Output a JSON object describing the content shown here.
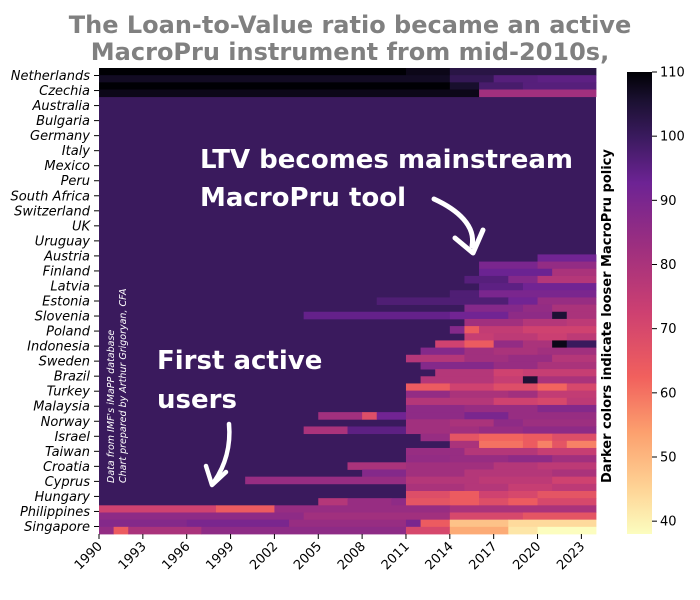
{
  "title_lines": [
    "The Loan-to-Value ratio became an active",
    "MacroPru instrument from mid-2010s,"
  ],
  "colorbar": {
    "label": "Darker colors indicate looser MacroPru policy",
    "ticks": [
      40,
      50,
      60,
      70,
      80,
      90,
      100,
      110
    ],
    "range": [
      38,
      110
    ]
  },
  "annotations": {
    "mainstream": [
      "LTV becomes mainstream",
      "MacroPru tool"
    ],
    "first": [
      "First active",
      "users"
    ],
    "credit": [
      "Data from IMF's iMaPP database",
      "Chart prepared by Arthur Grigoryan, CFA"
    ]
  },
  "chart_data": {
    "type": "heatmap",
    "x_ticks": [
      "1990",
      "1993",
      "1996",
      "1999",
      "2002",
      "2005",
      "2008",
      "2011",
      "2014",
      "2017",
      "2020",
      "2023"
    ],
    "x_range": [
      1990,
      2024
    ],
    "y_labels": [
      "Netherlands",
      "Czechia",
      "Australia",
      "Bulgaria",
      "Germany",
      "Italy",
      "Mexico",
      "Peru",
      "South Africa",
      "Switzerland",
      "UK",
      "Uruguay",
      "Austria",
      "Finland",
      "Latvia",
      "Estonia",
      "Slovenia",
      "Poland",
      "Indonesia",
      "Sweden",
      "Brazil",
      "Turkey",
      "Malaysia",
      "Norway",
      "Israel",
      "Taiwan",
      "Croatia",
      "Cyprus",
      "Hungary",
      "Philippines",
      "Singapore"
    ],
    "rows_per_label": 2,
    "baseline_value": 100,
    "rows": [
      [
        [
          1990,
          2011,
          110
        ],
        [
          2011,
          2014,
          108
        ],
        [
          2014,
          2024,
          103
        ]
      ],
      [
        [
          1990,
          2014,
          107
        ],
        [
          2014,
          2017,
          101
        ],
        [
          2017,
          2020,
          96
        ],
        [
          2020,
          2024,
          95
        ]
      ],
      [
        [
          1990,
          2014,
          110
        ],
        [
          2014,
          2016,
          106
        ],
        [
          2016,
          2019,
          98
        ],
        [
          2019,
          2024,
          96
        ]
      ],
      [
        [
          1990,
          2016,
          108
        ],
        [
          2016,
          2024,
          82
        ]
      ],
      [],
      [],
      [],
      [],
      [],
      [],
      [],
      [],
      [],
      [],
      [],
      [],
      [],
      [],
      [],
      [],
      [],
      [],
      [],
      [],
      [],
      [],
      [
        [
          2020,
          2024,
          92
        ]
      ],
      [
        [
          2016,
          2020,
          90
        ],
        [
          2020,
          2024,
          85
        ]
      ],
      [
        [
          2016,
          2021,
          93
        ],
        [
          2021,
          2024,
          80
        ]
      ],
      [
        [
          2015,
          2018,
          96
        ],
        [
          2018,
          2020,
          88
        ],
        [
          2020,
          2024,
          78
        ]
      ],
      [
        [
          2016,
          2019,
          95
        ],
        [
          2019,
          2024,
          92
        ]
      ],
      [
        [
          2014,
          2016,
          97
        ],
        [
          2016,
          2024,
          90
        ]
      ],
      [
        [
          2009,
          2018,
          97
        ],
        [
          2018,
          2020,
          92
        ],
        [
          2020,
          2024,
          84
        ]
      ],
      [
        [
          2015,
          2019,
          88
        ],
        [
          2019,
          2021,
          85
        ],
        [
          2021,
          2024,
          80
        ]
      ],
      [
        [
          2004,
          2014,
          94
        ],
        [
          2014,
          2018,
          92
        ],
        [
          2018,
          2021,
          86
        ],
        [
          2021,
          2022,
          105
        ],
        [
          2022,
          2024,
          80
        ]
      ],
      [
        [
          2015,
          2019,
          82
        ],
        [
          2019,
          2022,
          78
        ],
        [
          2022,
          2024,
          76
        ]
      ],
      [
        [
          2014,
          2015,
          88
        ],
        [
          2015,
          2016,
          64
        ],
        [
          2016,
          2019,
          75
        ],
        [
          2019,
          2024,
          72
        ]
      ],
      [
        [
          2015,
          2017,
          74
        ],
        [
          2017,
          2020,
          76
        ],
        [
          2020,
          2022,
          73
        ],
        [
          2022,
          2024,
          76
        ]
      ],
      [
        [
          2013,
          2015,
          72
        ],
        [
          2015,
          2017,
          64
        ],
        [
          2017,
          2019,
          85
        ],
        [
          2019,
          2021,
          80
        ],
        [
          2021,
          2022,
          108
        ],
        [
          2022,
          2024,
          100
        ]
      ],
      [
        [
          2012,
          2015,
          88
        ],
        [
          2015,
          2017,
          82
        ],
        [
          2017,
          2020,
          80
        ],
        [
          2020,
          2024,
          82
        ]
      ],
      [
        [
          2011,
          2015,
          78
        ],
        [
          2015,
          2018,
          82
        ],
        [
          2018,
          2021,
          84
        ],
        [
          2021,
          2024,
          78
        ]
      ],
      [
        [
          2012,
          2017,
          88
        ],
        [
          2017,
          2020,
          84
        ],
        [
          2020,
          2024,
          80
        ]
      ],
      [
        [
          2013,
          2017,
          78
        ],
        [
          2017,
          2019,
          72
        ],
        [
          2019,
          2024,
          74
        ]
      ],
      [
        [
          2012,
          2017,
          78
        ],
        [
          2017,
          2019,
          74
        ],
        [
          2019,
          2020,
          105
        ],
        [
          2020,
          2024,
          80
        ]
      ],
      [
        [
          2011,
          2014,
          64
        ],
        [
          2014,
          2017,
          72
        ],
        [
          2017,
          2020,
          68
        ],
        [
          2020,
          2022,
          62
        ],
        [
          2022,
          2024,
          70
        ]
      ],
      [
        [
          2011,
          2014,
          85
        ],
        [
          2014,
          2018,
          80
        ],
        [
          2018,
          2020,
          82
        ],
        [
          2020,
          2024,
          75
        ]
      ],
      [
        [
          2011,
          2017,
          78
        ],
        [
          2017,
          2020,
          72
        ],
        [
          2020,
          2022,
          70
        ],
        [
          2022,
          2024,
          76
        ]
      ],
      [
        [
          2011,
          2015,
          86
        ],
        [
          2015,
          2020,
          84
        ],
        [
          2020,
          2024,
          88
        ]
      ],
      [
        [
          2005,
          2008,
          82
        ],
        [
          2008,
          2009,
          68
        ],
        [
          2009,
          2011,
          92
        ],
        [
          2011,
          2015,
          86
        ],
        [
          2015,
          2018,
          90
        ],
        [
          2018,
          2024,
          84
        ]
      ],
      [
        [
          2011,
          2014,
          82
        ],
        [
          2014,
          2017,
          80
        ],
        [
          2017,
          2019,
          86
        ],
        [
          2019,
          2024,
          83
        ]
      ],
      [
        [
          2004,
          2007,
          80
        ],
        [
          2007,
          2011,
          95
        ],
        [
          2011,
          2016,
          82
        ],
        [
          2016,
          2019,
          84
        ],
        [
          2019,
          2024,
          86
        ]
      ],
      [
        [
          2012,
          2014,
          84
        ],
        [
          2014,
          2016,
          66
        ],
        [
          2016,
          2019,
          62
        ],
        [
          2019,
          2021,
          64
        ],
        [
          2021,
          2024,
          68
        ]
      ],
      [
        [
          2014,
          2016,
          80
        ],
        [
          2016,
          2019,
          60
        ],
        [
          2019,
          2020,
          64
        ],
        [
          2020,
          2021,
          58
        ],
        [
          2021,
          2022,
          66
        ],
        [
          2022,
          2024,
          58
        ]
      ],
      [
        [
          2011,
          2015,
          84
        ],
        [
          2015,
          2020,
          78
        ],
        [
          2020,
          2024,
          74
        ]
      ],
      [
        [
          2011,
          2014,
          85
        ],
        [
          2014,
          2018,
          84
        ],
        [
          2018,
          2021,
          86
        ],
        [
          2021,
          2024,
          82
        ]
      ],
      [
        [
          2007,
          2011,
          80
        ],
        [
          2011,
          2017,
          82
        ],
        [
          2017,
          2020,
          78
        ],
        [
          2020,
          2024,
          76
        ]
      ],
      [
        [
          2008,
          2011,
          88
        ],
        [
          2011,
          2015,
          82
        ],
        [
          2015,
          2021,
          78
        ],
        [
          2021,
          2024,
          80
        ]
      ],
      [
        [
          2000,
          2011,
          84
        ],
        [
          2011,
          2016,
          78
        ],
        [
          2016,
          2021,
          76
        ],
        [
          2021,
          2024,
          72
        ]
      ],
      [
        [
          2011,
          2015,
          80
        ],
        [
          2015,
          2018,
          78
        ],
        [
          2018,
          2021,
          74
        ],
        [
          2021,
          2024,
          76
        ]
      ],
      [
        [
          2011,
          2014,
          68
        ],
        [
          2014,
          2016,
          64
        ],
        [
          2016,
          2018,
          72
        ],
        [
          2018,
          2020,
          70
        ],
        [
          2020,
          2024,
          66
        ]
      ],
      [
        [
          2005,
          2007,
          78
        ],
        [
          2007,
          2010,
          84
        ],
        [
          2010,
          2011,
          86
        ],
        [
          2011,
          2014,
          66
        ],
        [
          2014,
          2016,
          64
        ],
        [
          2016,
          2018,
          68
        ],
        [
          2018,
          2020,
          64
        ],
        [
          2020,
          2024,
          70
        ]
      ],
      [
        [
          1990,
          1998,
          72
        ],
        [
          1998,
          2002,
          64
        ],
        [
          2002,
          2014,
          84
        ],
        [
          2014,
          2024,
          80
        ]
      ],
      [
        [
          1990,
          2004,
          86
        ],
        [
          2004,
          2014,
          82
        ],
        [
          2014,
          2019,
          70
        ],
        [
          2019,
          2024,
          66
        ]
      ],
      [
        [
          1990,
          1996,
          88
        ],
        [
          1996,
          2003,
          90
        ],
        [
          2003,
          2011,
          84
        ],
        [
          2011,
          2012,
          90
        ],
        [
          2012,
          2014,
          64
        ],
        [
          2014,
          2018,
          48
        ],
        [
          2018,
          2024,
          44
        ]
      ],
      [
        [
          1990,
          1991,
          85
        ],
        [
          1991,
          1992,
          64
        ],
        [
          1992,
          1997,
          80
        ],
        [
          1997,
          2011,
          86
        ],
        [
          2011,
          2014,
          70
        ],
        [
          2014,
          2018,
          52
        ],
        [
          2018,
          2020,
          42
        ],
        [
          2020,
          2024,
          38
        ]
      ]
    ]
  }
}
